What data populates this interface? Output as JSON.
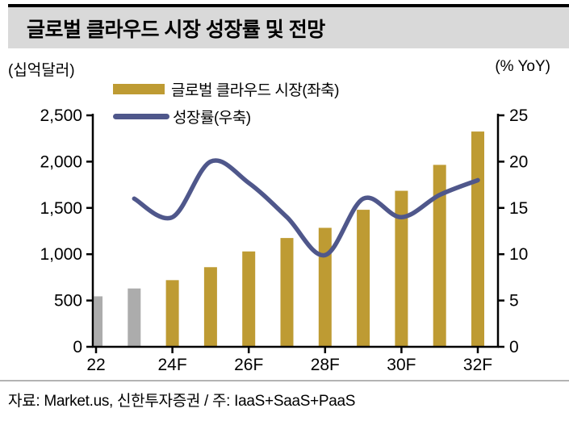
{
  "header": {
    "title": "글로벌 클라우드 시장 성장률 및 전망"
  },
  "axis_units": {
    "left": "(십억달러)",
    "right": "(% YoY)"
  },
  "legend": {
    "bar_label": "글로벌 클라우드 시장(좌축)",
    "line_label": "성장률(우축)"
  },
  "footer": {
    "source": "자료: Market.us, 신한투자증권 / 주: IaaS+SaaS+PaaS"
  },
  "colors": {
    "bar_forecast": "#be9b33",
    "bar_actual": "#acacac",
    "line": "#4f578b",
    "axis": "#000000",
    "title_band_bg": "#d9d9d9"
  },
  "chart_data": {
    "type": "bar+line",
    "title": "글로벌 클라우드 시장 성장률 및 전망",
    "categories": [
      "22",
      "23",
      "24F",
      "25F",
      "26F",
      "27F",
      "28F",
      "29F",
      "30F",
      "31F",
      "32F"
    ],
    "x_tick_labels": [
      "22",
      "24F",
      "26F",
      "28F",
      "30F",
      "32F"
    ],
    "x_tick_indices": [
      0,
      2,
      4,
      6,
      8,
      10
    ],
    "series": [
      {
        "name": "글로벌 클라우드 시장(좌축)",
        "type": "bar",
        "axis": "left",
        "values": [
          545,
          630,
          720,
          860,
          1030,
          1175,
          1285,
          1480,
          1685,
          1965,
          2325
        ],
        "bar_colors": [
          "#acacac",
          "#acacac",
          "#be9b33",
          "#be9b33",
          "#be9b33",
          "#be9b33",
          "#be9b33",
          "#be9b33",
          "#be9b33",
          "#be9b33",
          "#be9b33"
        ]
      },
      {
        "name": "성장률(우축)",
        "type": "line",
        "axis": "right",
        "color": "#4f578b",
        "values": [
          null,
          16,
          14,
          20,
          17.7,
          14,
          9.9,
          16,
          14,
          16.4,
          18
        ]
      }
    ],
    "left_axis": {
      "label": "(십억달러)",
      "min": 0,
      "max": 2500,
      "step": 500,
      "tick_labels": [
        "0",
        "500",
        "1,000",
        "1,500",
        "2,000",
        "2,500"
      ]
    },
    "right_axis": {
      "label": "(% YoY)",
      "min": 0,
      "max": 25,
      "step": 5,
      "tick_labels": [
        "0",
        "5",
        "10",
        "15",
        "20",
        "25"
      ]
    },
    "grid": false,
    "legend_position": "top-left-inside"
  }
}
